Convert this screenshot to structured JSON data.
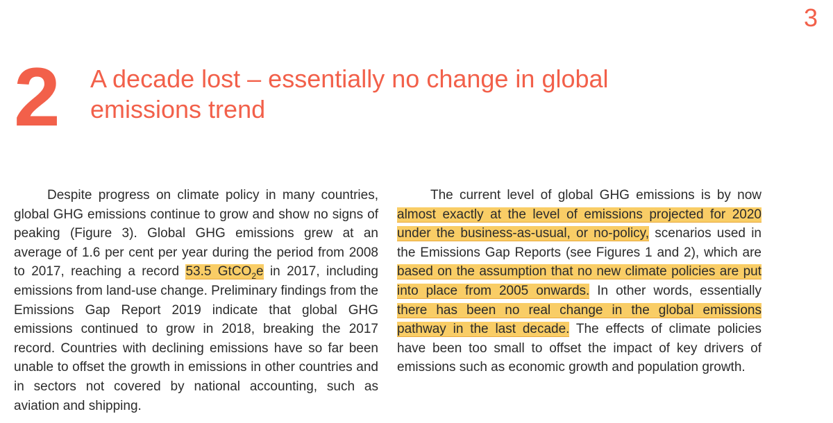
{
  "page_number": "3",
  "section": {
    "number": "2",
    "title": "A decade lost – essentially no change in global emissions trend"
  },
  "left_paragraph": {
    "p1": "Despite progress on climate policy in many countries, global GHG emissions continue to grow and show no signs of peaking (Figure 3). Global GHG emissions grew at an average of 1.6 per cent per year during the period from 2008 to 2017, reaching a record ",
    "hl1_pre": "53.5 GtCO",
    "hl1_sub": "2",
    "hl1_post": "e",
    "p2": " in 2017, including emissions from land-use change. Preliminary findings from the Emissions Gap Report 2019 indicate that global GHG emissions continued to grow in 2018, breaking the 2017 record. Countries with declining emissions have so far been unable to offset the growth in emissions in other countries and in sectors not covered by national accounting, such as aviation and shipping."
  },
  "right_paragraph": {
    "p1": "The current level of global GHG emissions is by now ",
    "hl1": "almost exactly at the level of emissions projected for 2020 under the business-as-usual, or no-policy,",
    "p2": " scenarios used in the Emissions Gap Reports (see Figures 1 and 2), which are ",
    "hl2": "based on the assumption that no new climate policies are put into place from 2005 onwards.",
    "p3": " In other words, essentially ",
    "hl3": "there has been no real change in the global emissions pathway in the last decade.",
    "p4": " The effects of climate policies have been too small to offset the impact of key drivers of emissions such as economic growth and population growth."
  },
  "colors": {
    "accent": "#f2604a",
    "highlight": "#f9cd66",
    "text": "#2b2b2b"
  }
}
